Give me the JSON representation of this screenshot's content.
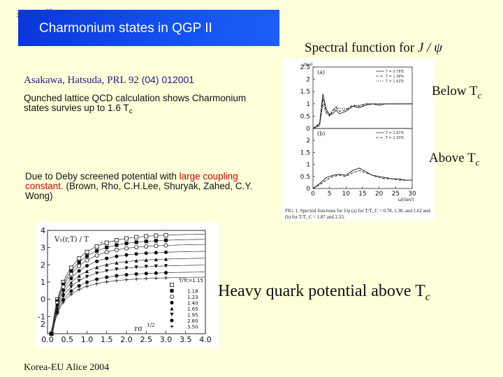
{
  "slide": {
    "title": "Charmonium states in QGP II",
    "author_line": "Asakawa, Hatsuda,  PRL 92",
    "author_ref": "(04) 012001",
    "para1": "Qunched lattice QCD calculation shows Charmonium states survies up to 1.6 T",
    "para1_sub": "c",
    "para2_pre": "Due to Deby screened potential with ",
    "para2_red": "large coupling constant",
    "para2_post": ". (Brown, Rho, C.H.Lee, Shuryak, Zahed,  C.Y. Wong)",
    "footer": "Korea-EU Alice 2004"
  },
  "spectral": {
    "title_pre": "Spectral function for ",
    "title_sym": "J / ψ",
    "below_label": "Below T",
    "below_sub": "c",
    "above_label": "Above T",
    "above_sub": "c",
    "caption": "FIG. 1.  Spectral functions for J/ψ (a) for T/T_C = 0.78, 1.38, and 1.62 and (b) for T/T_C = 1.87 and 2.33."
  },
  "potential": {
    "title_pre": "Heavy  quark  potential  above  T",
    "title_sub": "c"
  },
  "chart_data": [
    {
      "type": "line",
      "panel": "a",
      "xlabel": "ω[GeV]",
      "ylabel": "ρ(ω)",
      "xlim": [
        0,
        30
      ],
      "ylim": [
        0,
        2.5
      ],
      "x_ticks": [
        "0",
        "5",
        "10",
        "15",
        "20",
        "25",
        "30"
      ],
      "y_ticks": [
        "0",
        "0.5",
        "1",
        "1.5",
        "2",
        "2.5"
      ],
      "legend": [
        "T = 0.78Tc",
        "T = 1.38Tc",
        "T = 1.62Tc"
      ],
      "series": [
        {
          "name": "T = 0.78Tc",
          "x": [
            0,
            2,
            3,
            4,
            5,
            6,
            7,
            8,
            10,
            12,
            14,
            16,
            18,
            20,
            22,
            24,
            26,
            28,
            30
          ],
          "values": [
            0,
            0.2,
            1.4,
            0.8,
            0.55,
            0.6,
            0.75,
            0.6,
            0.7,
            0.9,
            0.85,
            0.95,
            1.0,
            0.95,
            1.0,
            1.0,
            1.0,
            1.0,
            1.0
          ]
        },
        {
          "name": "T = 1.38Tc",
          "x": [
            0,
            2,
            3,
            4,
            5,
            6,
            7,
            8,
            10,
            12,
            14,
            16,
            18,
            20,
            22,
            24,
            26,
            28,
            30
          ],
          "values": [
            0,
            0.15,
            1.2,
            0.7,
            0.5,
            0.7,
            0.85,
            0.7,
            0.75,
            0.95,
            0.9,
            1.0,
            1.0,
            1.0,
            1.0,
            1.0,
            1.0,
            1.0,
            1.0
          ]
        },
        {
          "name": "T = 1.62Tc",
          "x": [
            0,
            2,
            3,
            4,
            5,
            6,
            7,
            8,
            10,
            12,
            14,
            16,
            18,
            20,
            22,
            24,
            26,
            28,
            30
          ],
          "values": [
            0,
            0.1,
            1.0,
            0.6,
            0.55,
            0.75,
            0.9,
            0.8,
            0.8,
            0.9,
            0.95,
            1.0,
            1.0,
            1.0,
            1.0,
            1.0,
            1.0,
            1.0,
            1.0
          ]
        }
      ]
    },
    {
      "type": "line",
      "panel": "b",
      "xlabel": "ω[GeV]",
      "ylabel": "",
      "xlim": [
        0,
        30
      ],
      "ylim": [
        0,
        2.5
      ],
      "x_ticks": [
        "0",
        "5",
        "10",
        "15",
        "20",
        "25",
        "30"
      ],
      "y_ticks": [
        "0",
        "0.5",
        "1",
        "1.5",
        "2",
        "2.5"
      ],
      "legend": [
        "T = 1.87Tc",
        "T = 2.33Tc"
      ],
      "series": [
        {
          "name": "T = 1.87Tc",
          "x": [
            0,
            2,
            4,
            6,
            8,
            10,
            12,
            14,
            16,
            18,
            20,
            22,
            24,
            26,
            28,
            30
          ],
          "values": [
            0,
            0.2,
            0.45,
            0.55,
            0.6,
            0.55,
            0.75,
            0.85,
            0.7,
            0.55,
            0.5,
            0.45,
            0.4,
            0.4,
            0.35,
            0.35
          ]
        },
        {
          "name": "T = 2.33Tc",
          "x": [
            0,
            2,
            4,
            6,
            8,
            10,
            12,
            14,
            16,
            18,
            20,
            22,
            24,
            26,
            28,
            30
          ],
          "values": [
            0,
            0.15,
            0.35,
            0.5,
            0.55,
            0.5,
            0.65,
            0.75,
            0.65,
            0.55,
            0.45,
            0.4,
            0.4,
            0.35,
            0.35,
            0.35
          ]
        }
      ]
    },
    {
      "type": "scatter",
      "panel": "potential",
      "xlabel": "rσ",
      "xlabel_sup": "1/2",
      "ylabel": "V₁(r,T) / T",
      "ylabel_sub": "c",
      "xlim": [
        0,
        4
      ],
      "ylim": [
        -2,
        4
      ],
      "x_ticks": [
        "0.0",
        "0.5",
        "1.0",
        "1.5",
        "2.0",
        "2.5",
        "3.0",
        "3.5",
        "4.0"
      ],
      "y_ticks": [
        "-1",
        "0",
        "1",
        "2",
        "3",
        "4"
      ],
      "y_tick_bottom": "2",
      "legend_title": "T/Tc=1.15",
      "legend": [
        "1.15",
        "1.18",
        "1.23",
        "1.40",
        "1.65",
        "1.95",
        "2.60",
        "3.50"
      ],
      "series": [
        {
          "name": "1.15",
          "asymptote": 3.6
        },
        {
          "name": "1.18",
          "asymptote": 3.3
        },
        {
          "name": "1.23",
          "asymptote": 3.0
        },
        {
          "name": "1.40",
          "asymptote": 2.6
        },
        {
          "name": "1.65",
          "asymptote": 2.2
        },
        {
          "name": "1.95",
          "asymptote": 1.8
        },
        {
          "name": "2.60",
          "asymptote": 1.4
        },
        {
          "name": "3.50",
          "asymptote": 1.1
        }
      ]
    }
  ]
}
